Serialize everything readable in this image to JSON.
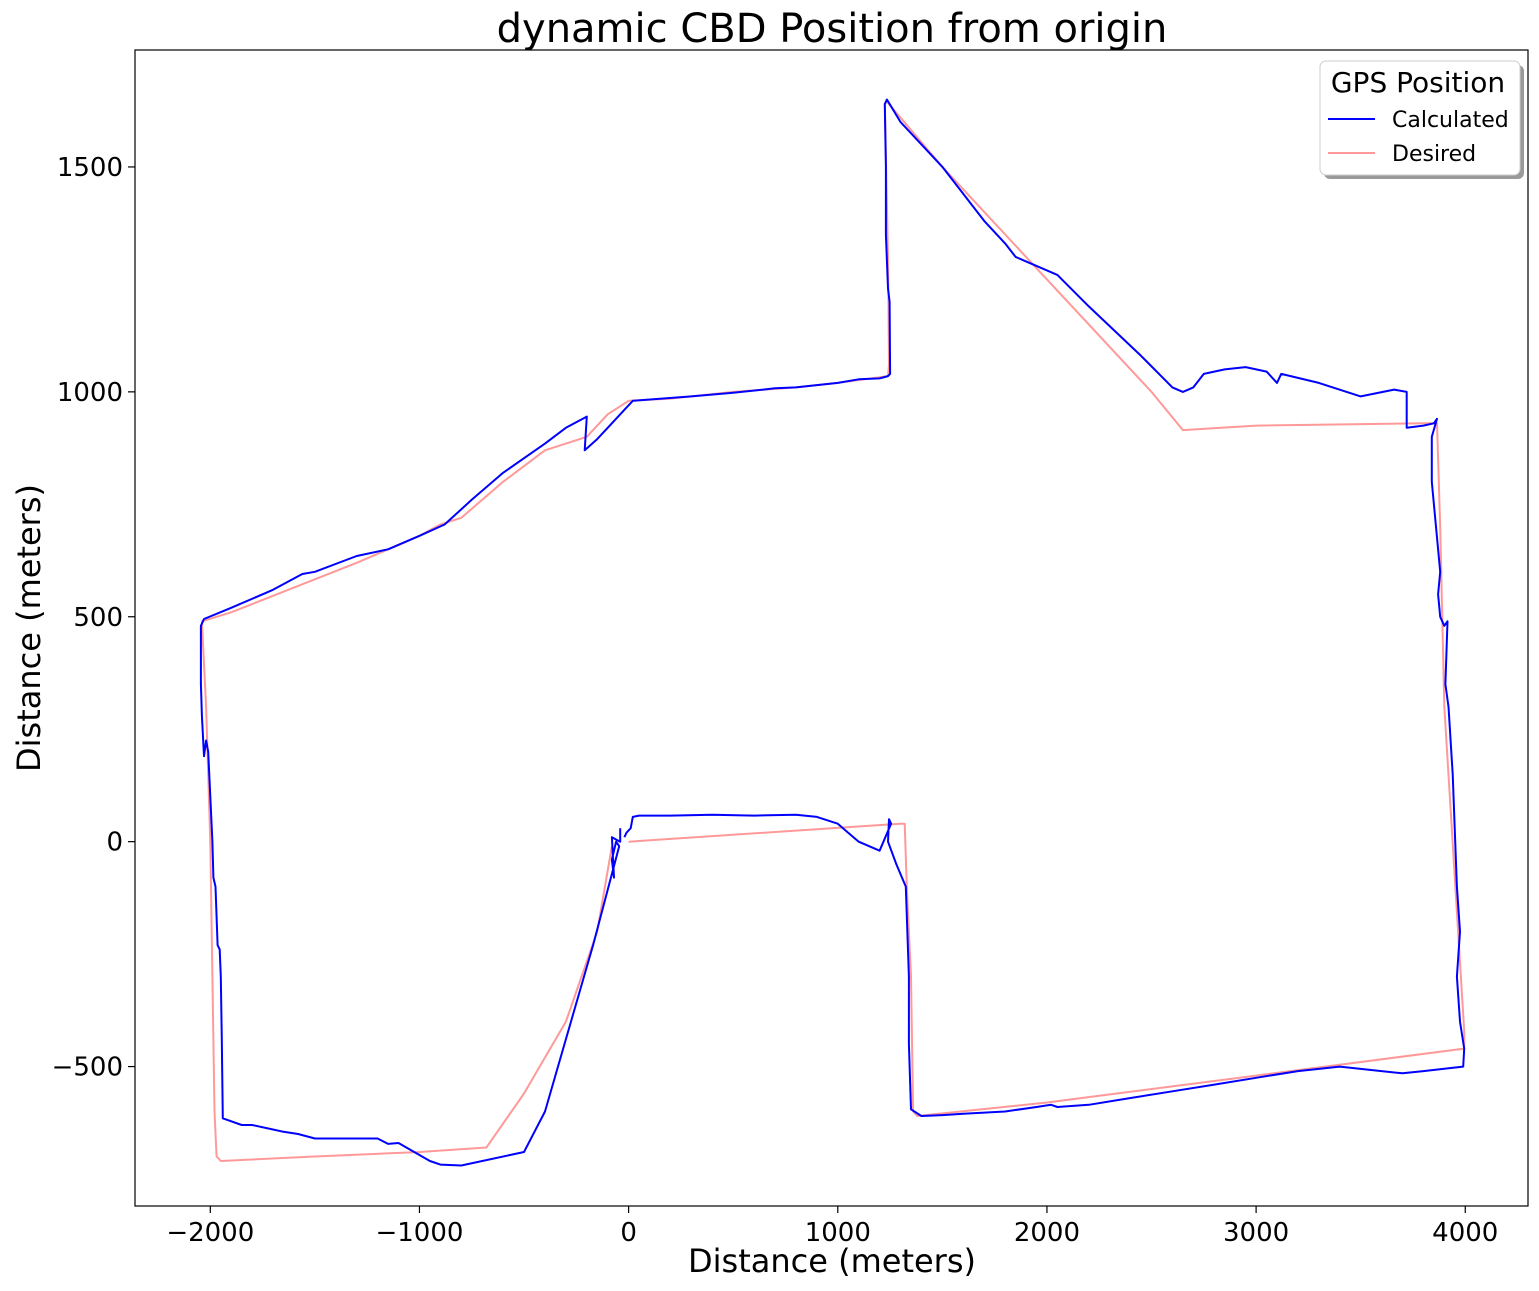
{
  "chart_data": {
    "type": "line",
    "title": "dynamic CBD Position from origin",
    "xlabel": "Distance (meters)",
    "ylabel": "Distance (meters)",
    "xlim": [
      -2360,
      4300
    ],
    "ylim": [
      -810,
      1760
    ],
    "xticks": [
      -2000,
      -1000,
      0,
      1000,
      2000,
      3000,
      4000
    ],
    "xtick_labels": [
      "−2000",
      "−1000",
      "0",
      "1000",
      "2000",
      "3000",
      "4000"
    ],
    "yticks": [
      -500,
      0,
      500,
      1000,
      1500
    ],
    "ytick_labels": [
      "−500",
      "0",
      "500",
      "1000",
      "1500"
    ],
    "grid": false,
    "legend": {
      "title": "GPS Position",
      "placement": "top-right"
    },
    "series": [
      {
        "name": "Calculated",
        "color": "#0000ff",
        "points": [
          [
            -40,
            30
          ],
          [
            -40,
            0
          ],
          [
            -80,
            10
          ],
          [
            -70,
            -80
          ],
          [
            -80,
            -40
          ],
          [
            -70,
            -20
          ],
          [
            -60,
            0
          ],
          [
            -45,
            -10
          ],
          [
            -170,
            -230
          ],
          [
            -400,
            -600
          ],
          [
            -500,
            -690
          ],
          [
            -800,
            -720
          ],
          [
            -900,
            -718
          ],
          [
            -950,
            -710
          ],
          [
            -1100,
            -670
          ],
          [
            -1150,
            -672
          ],
          [
            -1200,
            -660
          ],
          [
            -1300,
            -660
          ],
          [
            -1500,
            -660
          ],
          [
            -1580,
            -650
          ],
          [
            -1650,
            -645
          ],
          [
            -1700,
            -640
          ],
          [
            -1800,
            -630
          ],
          [
            -1850,
            -630
          ],
          [
            -1940,
            -615
          ],
          [
            -1945,
            -440
          ],
          [
            -1950,
            -300
          ],
          [
            -1955,
            -240
          ],
          [
            -1965,
            -230
          ],
          [
            -1975,
            -100
          ],
          [
            -1985,
            -80
          ],
          [
            -1990,
            0
          ],
          [
            -2010,
            200
          ],
          [
            -2020,
            225
          ],
          [
            -2030,
            190
          ],
          [
            -2040,
            280
          ],
          [
            -2045,
            350
          ],
          [
            -2045,
            480
          ],
          [
            -2030,
            495
          ],
          [
            -1900,
            520
          ],
          [
            -1700,
            560
          ],
          [
            -1560,
            595
          ],
          [
            -1500,
            600
          ],
          [
            -1300,
            635
          ],
          [
            -1150,
            650
          ],
          [
            -1000,
            680
          ],
          [
            -880,
            705
          ],
          [
            -750,
            760
          ],
          [
            -600,
            820
          ],
          [
            -400,
            885
          ],
          [
            -300,
            920
          ],
          [
            -200,
            945
          ],
          [
            -210,
            870
          ],
          [
            -150,
            895
          ],
          [
            -100,
            920
          ],
          [
            -20,
            960
          ],
          [
            20,
            980
          ],
          [
            300,
            990
          ],
          [
            500,
            998
          ],
          [
            700,
            1008
          ],
          [
            800,
            1010
          ],
          [
            1000,
            1020
          ],
          [
            1100,
            1028
          ],
          [
            1200,
            1030
          ],
          [
            1240,
            1035
          ],
          [
            1250,
            1040
          ],
          [
            1248,
            1200
          ],
          [
            1240,
            1230
          ],
          [
            1230,
            1350
          ],
          [
            1230,
            1500
          ],
          [
            1225,
            1640
          ],
          [
            1235,
            1650
          ],
          [
            1300,
            1600
          ],
          [
            1500,
            1500
          ],
          [
            1700,
            1380
          ],
          [
            1800,
            1330
          ],
          [
            1850,
            1300
          ],
          [
            1900,
            1290
          ],
          [
            1950,
            1280
          ],
          [
            2050,
            1260
          ],
          [
            2200,
            1190
          ],
          [
            2450,
            1080
          ],
          [
            2600,
            1010
          ],
          [
            2650,
            1000
          ],
          [
            2700,
            1010
          ],
          [
            2750,
            1040
          ],
          [
            2850,
            1050
          ],
          [
            2950,
            1055
          ],
          [
            3000,
            1050
          ],
          [
            3050,
            1045
          ],
          [
            3100,
            1020
          ],
          [
            3120,
            1040
          ],
          [
            3300,
            1020
          ],
          [
            3500,
            990
          ],
          [
            3660,
            1005
          ],
          [
            3720,
            1000
          ],
          [
            3720,
            920
          ],
          [
            3800,
            925
          ],
          [
            3850,
            930
          ],
          [
            3865,
            940
          ],
          [
            3840,
            900
          ],
          [
            3840,
            800
          ],
          [
            3860,
            700
          ],
          [
            3880,
            600
          ],
          [
            3870,
            550
          ],
          [
            3880,
            500
          ],
          [
            3900,
            480
          ],
          [
            3915,
            490
          ],
          [
            3905,
            350
          ],
          [
            3920,
            300
          ],
          [
            3940,
            150
          ],
          [
            3960,
            -100
          ],
          [
            3975,
            -200
          ],
          [
            3960,
            -300
          ],
          [
            3975,
            -400
          ],
          [
            3995,
            -460
          ],
          [
            3990,
            -500
          ],
          [
            3900,
            -505
          ],
          [
            3800,
            -510
          ],
          [
            3700,
            -515
          ],
          [
            3600,
            -510
          ],
          [
            3400,
            -500
          ],
          [
            3200,
            -510
          ],
          [
            3000,
            -525
          ],
          [
            2800,
            -540
          ],
          [
            2600,
            -555
          ],
          [
            2400,
            -570
          ],
          [
            2200,
            -585
          ],
          [
            2050,
            -590
          ],
          [
            2020,
            -585
          ],
          [
            1950,
            -590
          ],
          [
            1800,
            -600
          ],
          [
            1600,
            -605
          ],
          [
            1500,
            -608
          ],
          [
            1400,
            -610
          ],
          [
            1350,
            -595
          ],
          [
            1340,
            -450
          ],
          [
            1340,
            -300
          ],
          [
            1325,
            -100
          ],
          [
            1280,
            -50
          ],
          [
            1240,
            0
          ],
          [
            1245,
            50
          ],
          [
            1255,
            40
          ],
          [
            1200,
            -20
          ],
          [
            1100,
            0
          ],
          [
            1050,
            20
          ],
          [
            1000,
            40
          ],
          [
            900,
            55
          ],
          [
            800,
            60
          ],
          [
            600,
            58
          ],
          [
            400,
            60
          ],
          [
            200,
            58
          ],
          [
            50,
            58
          ],
          [
            20,
            55
          ],
          [
            10,
            30
          ],
          [
            -10,
            20
          ],
          [
            -20,
            10
          ]
        ]
      },
      {
        "name": "Desired",
        "color": "#ff9999",
        "points": [
          [
            0,
            0
          ],
          [
            1300,
            40
          ],
          [
            1320,
            40
          ],
          [
            1330,
            -100
          ],
          [
            1350,
            -300
          ],
          [
            1360,
            -600
          ],
          [
            1380,
            -610
          ],
          [
            2000,
            -580
          ],
          [
            3000,
            -520
          ],
          [
            3995,
            -460
          ],
          [
            3995,
            -420
          ],
          [
            3900,
            300
          ],
          [
            3880,
            700
          ],
          [
            3865,
            930
          ],
          [
            3800,
            930
          ],
          [
            3000,
            925
          ],
          [
            2650,
            915
          ],
          [
            2500,
            1000
          ],
          [
            2200,
            1150
          ],
          [
            1900,
            1300
          ],
          [
            1500,
            1500
          ],
          [
            1235,
            1645
          ],
          [
            1225,
            1640
          ],
          [
            1240,
            1300
          ],
          [
            1245,
            1060
          ],
          [
            1240,
            1035
          ],
          [
            1000,
            1020
          ],
          [
            800,
            1010
          ],
          [
            500,
            1000
          ],
          [
            200,
            985
          ],
          [
            0,
            980
          ],
          [
            -100,
            950
          ],
          [
            -200,
            900
          ],
          [
            -400,
            870
          ],
          [
            -600,
            800
          ],
          [
            -800,
            720
          ],
          [
            -900,
            705
          ],
          [
            -1000,
            680
          ],
          [
            -1300,
            620
          ],
          [
            -1900,
            510
          ],
          [
            -2040,
            490
          ],
          [
            -2020,
            300
          ],
          [
            -2000,
            0
          ],
          [
            -1990,
            -300
          ],
          [
            -1980,
            -600
          ],
          [
            -1970,
            -700
          ],
          [
            -1950,
            -710
          ],
          [
            -1500,
            -700
          ],
          [
            -1000,
            -690
          ],
          [
            -680,
            -680
          ],
          [
            -500,
            -560
          ],
          [
            -300,
            -400
          ],
          [
            -150,
            -200
          ],
          [
            -80,
            -10
          ]
        ]
      }
    ]
  }
}
